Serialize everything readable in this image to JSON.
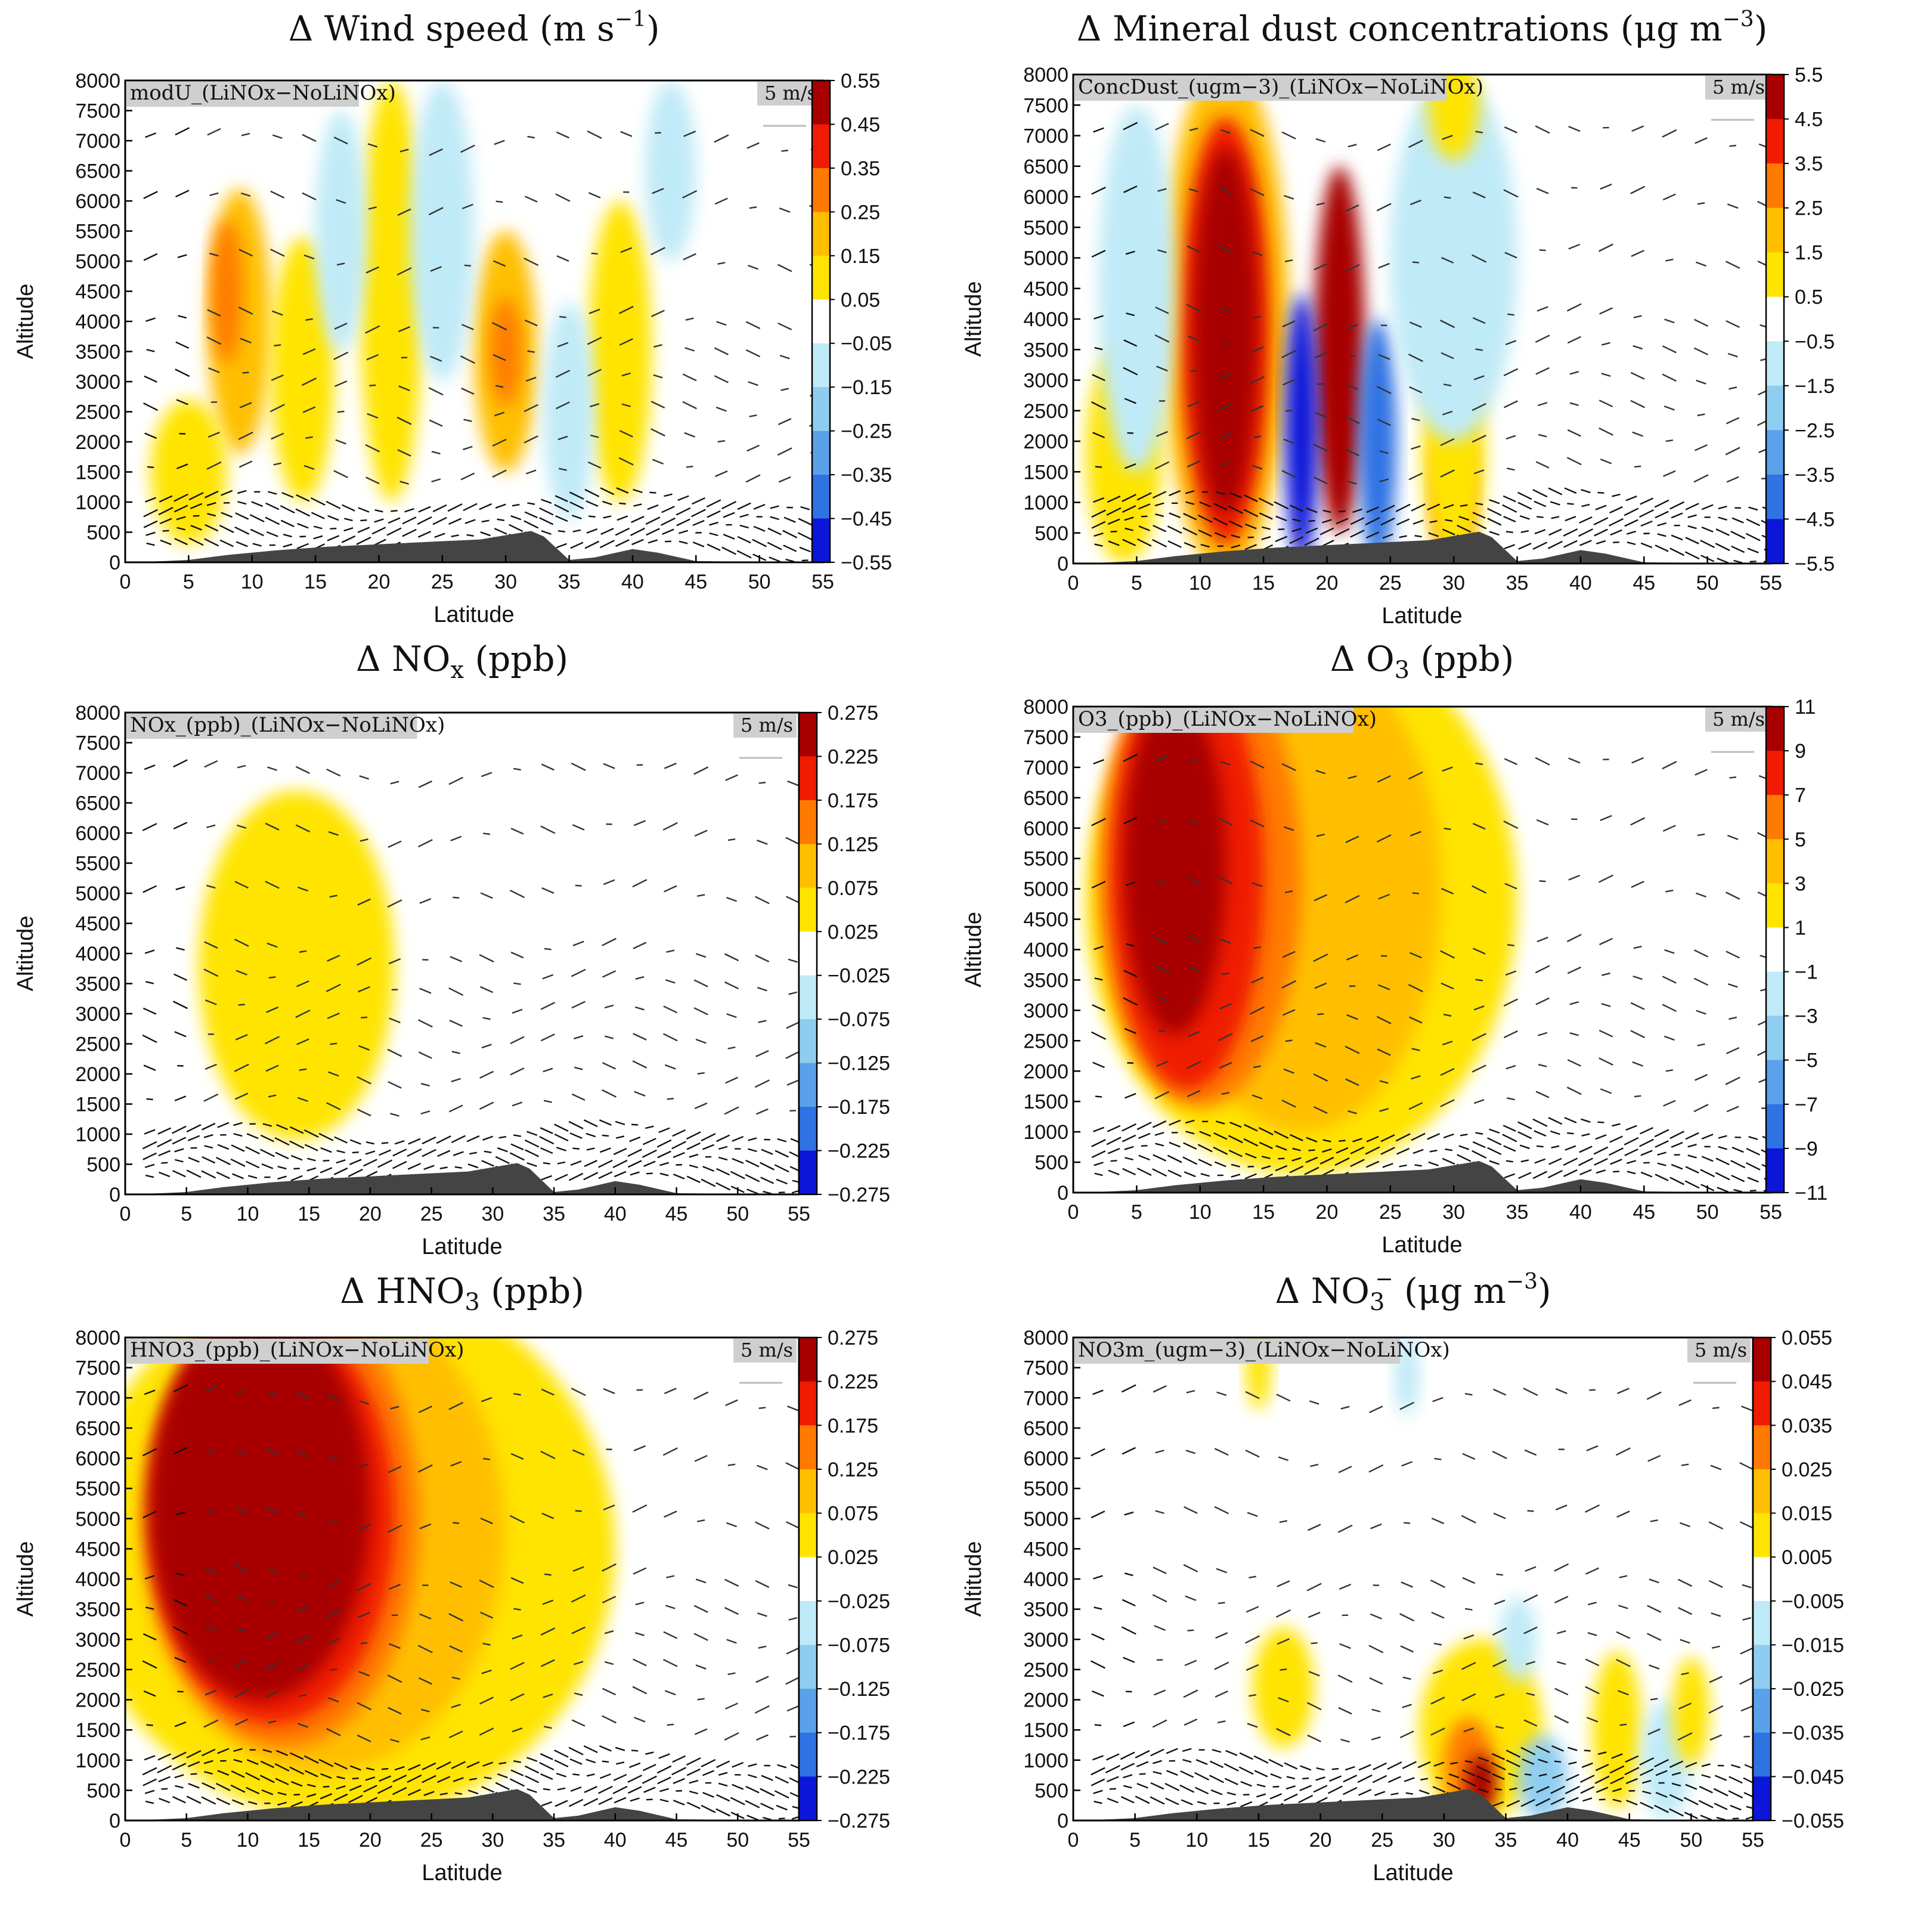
{
  "figure": {
    "common": {
      "xlabel": "Latitude",
      "ylabel": "Altitude",
      "xlim": [
        0,
        55
      ],
      "ylim": [
        0,
        8000
      ],
      "xticks": [
        0,
        5,
        10,
        15,
        20,
        25,
        30,
        35,
        40,
        45,
        50,
        55
      ],
      "yticks": [
        0,
        500,
        1000,
        1500,
        2000,
        2500,
        3000,
        3500,
        4000,
        4500,
        5000,
        5500,
        6000,
        6500,
        7000,
        7500,
        8000
      ],
      "reference_vector": "5 m/s",
      "colors": {
        "neg5": "#0b16d8",
        "neg4": "#2f72e3",
        "neg3": "#5aa1ea",
        "neg2": "#8fcdf0",
        "neg1": "#bfeaf7",
        "zero": "#ffffff",
        "pos1": "#ffe400",
        "pos2": "#ffbf00",
        "pos3": "#ff7a00",
        "pos4": "#f01b00",
        "pos5": "#a80000",
        "terrain": "#444444"
      }
    }
  },
  "chart_data": [
    {
      "type": "heatmap",
      "title_main": "Δ Wind speed (m s",
      "title_sup": "−1",
      "title_end": ")",
      "variable_label": "modU_(LiNOx−NoLiNOx)",
      "colorbar_ticks": [
        "0.55",
        "0.45",
        "0.35",
        "0.25",
        "0.15",
        "0.05",
        "−0.05",
        "−0.15",
        "−0.25",
        "−0.35",
        "−0.45",
        "−0.55"
      ],
      "blobs": [
        {
          "lat": 9,
          "alt": 4000,
          "rl": 2.5,
          "ra": 2200,
          "level": 2
        },
        {
          "lat": 8,
          "alt": 4500,
          "rl": 1.2,
          "ra": 1200,
          "level": 3
        },
        {
          "lat": 14,
          "alt": 3200,
          "rl": 2.5,
          "ra": 2200,
          "level": 1
        },
        {
          "lat": 21,
          "alt": 4500,
          "rl": 2.5,
          "ra": 3500,
          "level": 1
        },
        {
          "lat": 30,
          "alt": 3500,
          "rl": 2.5,
          "ra": 2000,
          "level": 2
        },
        {
          "lat": 30,
          "alt": 3500,
          "rl": 1.2,
          "ra": 900,
          "level": 3
        },
        {
          "lat": 39,
          "alt": 3500,
          "rl": 2.5,
          "ra": 2500,
          "level": 1
        },
        {
          "lat": 5,
          "alt": 1500,
          "rl": 3,
          "ra": 1200,
          "level": 1
        },
        {
          "lat": 25,
          "alt": 5500,
          "rl": 2.5,
          "ra": 2500,
          "level": -1
        },
        {
          "lat": 17,
          "alt": 5500,
          "rl": 2,
          "ra": 2000,
          "level": -1
        },
        {
          "lat": 35,
          "alt": 2500,
          "rl": 2,
          "ra": 1800,
          "level": -1
        },
        {
          "lat": 43,
          "alt": 6500,
          "rl": 2,
          "ra": 1500,
          "level": -1
        }
      ]
    },
    {
      "type": "heatmap",
      "title_main": "Δ Mineral dust concentrations (μg m",
      "title_sup": "−3",
      "title_end": ")",
      "variable_label": "ConcDust_(ugm−3)_(LiNOx−NoLiNOx)",
      "colorbar_ticks": [
        "5.5",
        "4.5",
        "3.5",
        "2.5",
        "1.5",
        "0.5",
        "−0.5",
        "−1.5",
        "−2.5",
        "−3.5",
        "−4.5",
        "−5.5"
      ],
      "blobs": [
        {
          "lat": 12,
          "alt": 4000,
          "rl": 5,
          "ra": 4200,
          "level": 2
        },
        {
          "lat": 12,
          "alt": 3800,
          "rl": 3.5,
          "ra": 3500,
          "level": 4
        },
        {
          "lat": 12,
          "alt": 3800,
          "rl": 2.5,
          "ra": 3000,
          "level": 5
        },
        {
          "lat": 21,
          "alt": 3500,
          "rl": 2,
          "ra": 3000,
          "level": 5
        },
        {
          "lat": 18,
          "alt": 2200,
          "rl": 1.3,
          "ra": 2200,
          "level": -5
        },
        {
          "lat": 24,
          "alt": 2000,
          "rl": 1.5,
          "ra": 2000,
          "level": -4
        },
        {
          "lat": 30,
          "alt": 1200,
          "rl": 1.5,
          "ra": 1200,
          "level": 4
        },
        {
          "lat": 30,
          "alt": 1800,
          "rl": 2.5,
          "ra": 1800,
          "level": 1
        },
        {
          "lat": 4,
          "alt": 1800,
          "rl": 3,
          "ra": 1800,
          "level": 1
        },
        {
          "lat": 5,
          "alt": 4500,
          "rl": 3,
          "ra": 3000,
          "level": -1
        },
        {
          "lat": 30,
          "alt": 5000,
          "rl": 5,
          "ra": 3000,
          "level": -1
        },
        {
          "lat": 30,
          "alt": 7500,
          "rl": 2,
          "ra": 900,
          "level": 1
        }
      ]
    },
    {
      "type": "heatmap",
      "title_main": "Δ NO",
      "title_sub": "x",
      "title_end": " (ppb)",
      "variable_label": "NOx_(ppb)_(LiNOx−NoLiNOx)",
      "colorbar_ticks": [
        "0.275",
        "0.225",
        "0.175",
        "0.125",
        "0.075",
        "0.025",
        "−0.025",
        "−0.075",
        "−0.125",
        "−0.175",
        "−0.225",
        "−0.275"
      ],
      "blobs": [
        {
          "lat": 14,
          "alt": 3800,
          "rl": 8,
          "ra": 2900,
          "level": 1
        }
      ]
    },
    {
      "type": "heatmap",
      "title_main": "Δ O",
      "title_sub": "3",
      "title_end": " (ppb)",
      "variable_label": "O3_(ppb)_(LiNOx−NoLiNOx)",
      "colorbar_ticks": [
        "11",
        "9",
        "7",
        "5",
        "3",
        "1",
        "−1",
        "−3",
        "−5",
        "−7",
        "−9",
        "−11"
      ],
      "blobs": [
        {
          "lat": 18,
          "alt": 4800,
          "rl": 17,
          "ra": 4500,
          "level": 1
        },
        {
          "lat": 18,
          "alt": 5000,
          "rl": 11,
          "ra": 4000,
          "level": 2
        },
        {
          "lat": 10,
          "alt": 5200,
          "rl": 8,
          "ra": 3800,
          "level": 3
        },
        {
          "lat": 9,
          "alt": 5200,
          "rl": 6,
          "ra": 3500,
          "level": 4
        },
        {
          "lat": 8,
          "alt": 5400,
          "rl": 4,
          "ra": 2800,
          "level": 5
        }
      ]
    },
    {
      "type": "heatmap",
      "title_main": "Δ HNO",
      "title_sub": "3",
      "title_end": " (ppb)",
      "variable_label": "HNO3_(ppb)_(LiNOx−NoLiNOx)",
      "colorbar_ticks": [
        "0.275",
        "0.225",
        "0.175",
        "0.125",
        "0.075",
        "0.025",
        "−0.025",
        "−0.075",
        "−0.125",
        "−0.175",
        "−0.225",
        "−0.275"
      ],
      "blobs": [
        {
          "lat": 18,
          "alt": 4500,
          "rl": 22,
          "ra": 4500,
          "level": 1
        },
        {
          "lat": 16,
          "alt": 4800,
          "rl": 15,
          "ra": 4000,
          "level": 2
        },
        {
          "lat": 13,
          "alt": 5000,
          "rl": 11,
          "ra": 3800,
          "level": 3
        },
        {
          "lat": 12,
          "alt": 5000,
          "rl": 10,
          "ra": 3400,
          "level": 4
        },
        {
          "lat": 11,
          "alt": 5200,
          "rl": 9,
          "ra": 3200,
          "level": 5
        }
      ]
    },
    {
      "type": "heatmap",
      "title_main": "Δ NO",
      "title_sub": "3",
      "title_sup": "−",
      "title_end": " (μg m",
      "title_sup2": "−3",
      "title_end2": ")",
      "variable_label": "NO3m_(ugm−3)_(LiNOx−NoLiNOx)",
      "colorbar_ticks": [
        "0.055",
        "0.045",
        "0.035",
        "0.025",
        "0.015",
        "0.005",
        "−0.005",
        "−0.015",
        "−0.025",
        "−0.035",
        "−0.045",
        "−0.055"
      ],
      "blobs": [
        {
          "lat": 17,
          "alt": 2200,
          "rl": 2.5,
          "ra": 1000,
          "level": 1
        },
        {
          "lat": 33,
          "alt": 1500,
          "rl": 5,
          "ra": 1500,
          "level": 1
        },
        {
          "lat": 32,
          "alt": 900,
          "rl": 2,
          "ra": 800,
          "level": 3
        },
        {
          "lat": 33,
          "alt": 600,
          "rl": 1.2,
          "ra": 500,
          "level": 5
        },
        {
          "lat": 38,
          "alt": 700,
          "rl": 2,
          "ra": 700,
          "level": -2
        },
        {
          "lat": 44,
          "alt": 1500,
          "rl": 2,
          "ra": 1300,
          "level": 1
        },
        {
          "lat": 48,
          "alt": 1000,
          "rl": 2,
          "ra": 1000,
          "level": -1
        },
        {
          "lat": 50,
          "alt": 1800,
          "rl": 1.5,
          "ra": 900,
          "level": 1
        },
        {
          "lat": 15,
          "alt": 7500,
          "rl": 1,
          "ra": 700,
          "level": 1
        },
        {
          "lat": 27,
          "alt": 7400,
          "rl": 1,
          "ra": 700,
          "level": -1
        },
        {
          "lat": 36,
          "alt": 3000,
          "rl": 1.5,
          "ra": 700,
          "level": -1
        }
      ]
    }
  ]
}
